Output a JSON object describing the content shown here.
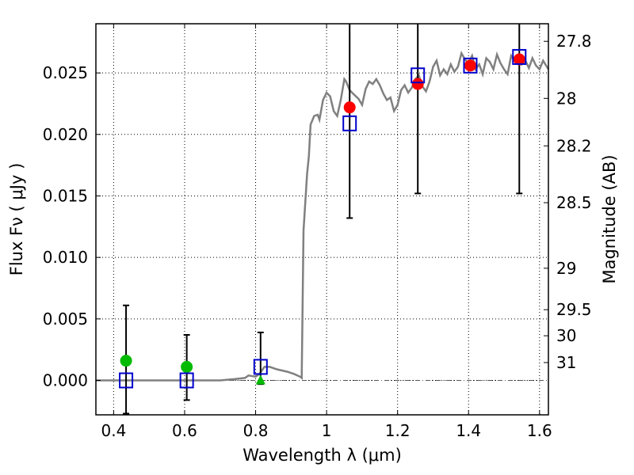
{
  "chart_data": {
    "type": "scatter",
    "xlabel": "Wavelength  λ (μm)",
    "ylabel": "Flux  Fν  ( μJy )",
    "ylabel_right": "Magnitude (AB)",
    "xlim": [
      0.35,
      1.625
    ],
    "ylim": [
      -0.0028,
      0.029
    ],
    "grid": true,
    "x_ticks": [
      {
        "value": 0.4,
        "label": "0.4"
      },
      {
        "value": 0.6,
        "label": "0.6"
      },
      {
        "value": 0.8,
        "label": "0.8"
      },
      {
        "value": 1.0,
        "label": "1"
      },
      {
        "value": 1.2,
        "label": "1.2"
      },
      {
        "value": 1.4,
        "label": "1.4"
      },
      {
        "value": 1.6,
        "label": "1.6"
      }
    ],
    "y_ticks": [
      {
        "value": 0.0,
        "label": "0.000"
      },
      {
        "value": 0.005,
        "label": "0.005"
      },
      {
        "value": 0.01,
        "label": "0.010"
      },
      {
        "value": 0.015,
        "label": "0.015"
      },
      {
        "value": 0.02,
        "label": "0.020"
      },
      {
        "value": 0.025,
        "label": "0.025"
      }
    ],
    "y2_ticks": [
      {
        "label": "27.8",
        "flux": 0.02757
      },
      {
        "label": "28",
        "flux": 0.02293
      },
      {
        "label": "28.2",
        "flux": 0.01907
      },
      {
        "label": "28.5",
        "flux": 0.01445
      },
      {
        "label": "29",
        "flux": 0.00912
      },
      {
        "label": "29.5",
        "flux": 0.00575
      },
      {
        "label": "30",
        "flux": 0.00363
      },
      {
        "label": "31",
        "flux": 0.00145
      }
    ],
    "model_sed": [
      [
        0.35,
        0.0
      ],
      [
        0.65,
        0.0
      ],
      [
        0.7,
        0.0
      ],
      [
        0.74,
        0.0001
      ],
      [
        0.77,
        0.0002
      ],
      [
        0.78,
        0.0004
      ],
      [
        0.8,
        0.0003
      ],
      [
        0.81,
        0.0005
      ],
      [
        0.825,
        0.0011
      ],
      [
        0.84,
        0.0011
      ],
      [
        0.86,
        0.0009
      ],
      [
        0.89,
        0.0007
      ],
      [
        0.91,
        0.0005
      ],
      [
        0.925,
        0.0003
      ],
      [
        0.93,
        0.0002
      ],
      [
        0.935,
        0.0122
      ],
      [
        0.945,
        0.0168
      ],
      [
        0.95,
        0.0182
      ],
      [
        0.955,
        0.0208
      ],
      [
        0.965,
        0.0215
      ],
      [
        0.975,
        0.0216
      ],
      [
        0.98,
        0.0212
      ],
      [
        0.99,
        0.0228
      ],
      [
        1.0,
        0.0234
      ],
      [
        1.01,
        0.0231
      ],
      [
        1.02,
        0.0219
      ],
      [
        1.03,
        0.0215
      ],
      [
        1.04,
        0.0228
      ],
      [
        1.05,
        0.0245
      ],
      [
        1.055,
        0.0243
      ],
      [
        1.065,
        0.0236
      ],
      [
        1.075,
        0.0233
      ],
      [
        1.09,
        0.0229
      ],
      [
        1.1,
        0.0224
      ],
      [
        1.11,
        0.0237
      ],
      [
        1.12,
        0.0243
      ],
      [
        1.13,
        0.0241
      ],
      [
        1.14,
        0.0245
      ],
      [
        1.15,
        0.024
      ],
      [
        1.16,
        0.0233
      ],
      [
        1.17,
        0.0228
      ],
      [
        1.18,
        0.023
      ],
      [
        1.19,
        0.0219
      ],
      [
        1.2,
        0.0224
      ],
      [
        1.21,
        0.0236
      ],
      [
        1.22,
        0.024
      ],
      [
        1.23,
        0.0234
      ],
      [
        1.24,
        0.0238
      ],
      [
        1.25,
        0.0245
      ],
      [
        1.26,
        0.0248
      ],
      [
        1.27,
        0.0239
      ],
      [
        1.28,
        0.0235
      ],
      [
        1.29,
        0.0243
      ],
      [
        1.3,
        0.0255
      ],
      [
        1.31,
        0.026
      ],
      [
        1.32,
        0.0248
      ],
      [
        1.33,
        0.0253
      ],
      [
        1.34,
        0.0249
      ],
      [
        1.35,
        0.0257
      ],
      [
        1.36,
        0.0251
      ],
      [
        1.37,
        0.0255
      ],
      [
        1.38,
        0.0266
      ],
      [
        1.39,
        0.0261
      ],
      [
        1.4,
        0.0258
      ],
      [
        1.41,
        0.0264
      ],
      [
        1.42,
        0.0253
      ],
      [
        1.43,
        0.0257
      ],
      [
        1.44,
        0.0249
      ],
      [
        1.45,
        0.0262
      ],
      [
        1.46,
        0.0259
      ],
      [
        1.47,
        0.0253
      ],
      [
        1.48,
        0.0265
      ],
      [
        1.49,
        0.0258
      ],
      [
        1.5,
        0.0253
      ],
      [
        1.51,
        0.0249
      ],
      [
        1.52,
        0.0264
      ],
      [
        1.53,
        0.026
      ],
      [
        1.54,
        0.0262
      ],
      [
        1.55,
        0.0257
      ],
      [
        1.56,
        0.026
      ],
      [
        1.57,
        0.0254
      ],
      [
        1.58,
        0.0262
      ],
      [
        1.59,
        0.0256
      ],
      [
        1.6,
        0.0253
      ],
      [
        1.61,
        0.026
      ],
      [
        1.625,
        0.0253
      ]
    ],
    "model_color": "#808080",
    "observed": [
      {
        "x": 0.435,
        "y": 0.0016,
        "err_low": -0.0027,
        "err_high": 0.0061,
        "color": "#00bb00",
        "marker": "circle"
      },
      {
        "x": 0.606,
        "y": 0.0011,
        "err_low": -0.0016,
        "err_high": 0.0037,
        "color": "#00bb00",
        "marker": "circle"
      },
      {
        "x": 0.814,
        "y": 0.0,
        "err_low": -0.0003,
        "err_high": 0.0039,
        "color": "#00bb00",
        "marker": "triangle"
      },
      {
        "x": 1.065,
        "y": 0.0222,
        "err_low": 0.0132,
        "err_high": 0.03,
        "color": "#ff0000",
        "marker": "circle"
      },
      {
        "x": 1.257,
        "y": 0.0241,
        "err_low": 0.0152,
        "err_high": 0.03,
        "color": "#ff0000",
        "marker": "circle"
      },
      {
        "x": 1.405,
        "y": 0.0256,
        "err_low": null,
        "err_high": null,
        "color": "#ff0000",
        "marker": "circle"
      },
      {
        "x": 1.543,
        "y": 0.0261,
        "err_low": 0.0152,
        "err_high": 0.03,
        "color": "#ff0000",
        "marker": "circle"
      }
    ],
    "model_bands": [
      {
        "x": 0.435,
        "y": 0.0
      },
      {
        "x": 0.606,
        "y": 0.0
      },
      {
        "x": 0.814,
        "y": 0.0011
      },
      {
        "x": 1.065,
        "y": 0.0209
      },
      {
        "x": 1.257,
        "y": 0.0248
      },
      {
        "x": 1.405,
        "y": 0.0256
      },
      {
        "x": 1.543,
        "y": 0.0263
      }
    ],
    "band_color": "#0000cc"
  }
}
